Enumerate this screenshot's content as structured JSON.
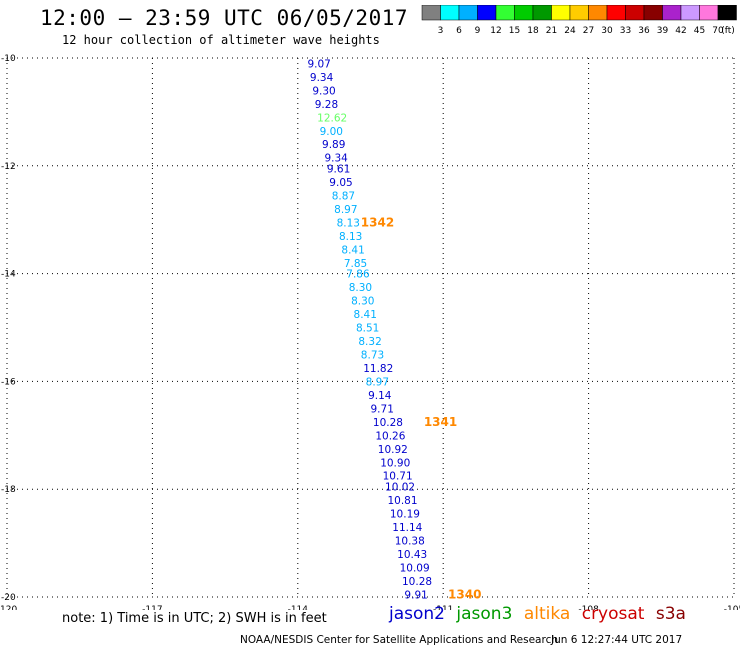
{
  "header": {
    "title": "12:00 – 23:59 UTC 06/05/2017",
    "subtitle": "12 hour collection of altimeter wave heights"
  },
  "colorbar": {
    "colors": [
      "#808080",
      "#00ffff",
      "#00b0ff",
      "#0000ff",
      "#33ff33",
      "#00cc00",
      "#009900",
      "#ffff00",
      "#ffcc00",
      "#ff8800",
      "#ff0000",
      "#cc0000",
      "#880000",
      "#aa22cc",
      "#cc99ff",
      "#ff77dd",
      "#000000"
    ],
    "labels": [
      "3",
      "6",
      "9",
      "12",
      "15",
      "18",
      "21",
      "24",
      "27",
      "30",
      "33",
      "36",
      "39",
      "42",
      "45",
      "70"
    ],
    "unit": "(ft)"
  },
  "chart_data": {
    "type": "scatter",
    "x_ticks": [
      "-120",
      "-117",
      "-114",
      "-111",
      "-108",
      "-105"
    ],
    "y_ticks": [
      "-10",
      "-12",
      "-14",
      "-16",
      "-18",
      "-20"
    ],
    "xlim": [
      -120,
      -105
    ],
    "ylim": [
      -20,
      -10
    ],
    "grid": true,
    "points": [
      {
        "lon": -113.8,
        "lat": -10.1,
        "label": "9.07",
        "color": "#0000cc"
      },
      {
        "lon": -113.75,
        "lat": -10.35,
        "label": "9.34",
        "color": "#0000cc"
      },
      {
        "lon": -113.7,
        "lat": -10.6,
        "label": "9.30",
        "color": "#0000cc"
      },
      {
        "lon": -113.65,
        "lat": -10.85,
        "label": "9.28",
        "color": "#0000cc"
      },
      {
        "lon": -113.6,
        "lat": -11.1,
        "label": "12.62",
        "color": "#66ff66"
      },
      {
        "lon": -113.55,
        "lat": -11.35,
        "label": "9.00",
        "color": "#00b0ff"
      },
      {
        "lon": -113.5,
        "lat": -11.6,
        "label": "9.89",
        "color": "#0000cc"
      },
      {
        "lon": -113.45,
        "lat": -11.85,
        "label": "9.34",
        "color": "#0000cc"
      },
      {
        "lon": -113.4,
        "lat": -12.05,
        "label": "9.61",
        "color": "#0000cc"
      },
      {
        "lon": -113.35,
        "lat": -12.3,
        "label": "9.05",
        "color": "#0000cc"
      },
      {
        "lon": -113.3,
        "lat": -12.55,
        "label": "8.87",
        "color": "#00b0ff"
      },
      {
        "lon": -113.25,
        "lat": -12.8,
        "label": "8.97",
        "color": "#00b0ff"
      },
      {
        "lon": -113.2,
        "lat": -13.05,
        "label": "8.13",
        "color": "#00b0ff"
      },
      {
        "lon": -113.15,
        "lat": -13.3,
        "label": "8.13",
        "color": "#00b0ff"
      },
      {
        "lon": -113.1,
        "lat": -13.55,
        "label": "8.41",
        "color": "#00b0ff"
      },
      {
        "lon": -113.05,
        "lat": -13.8,
        "label": "7.85",
        "color": "#00b0ff"
      },
      {
        "lon": -113.0,
        "lat": -14.0,
        "label": "7.86",
        "color": "#00b0ff"
      },
      {
        "lon": -112.95,
        "lat": -14.25,
        "label": "8.30",
        "color": "#00b0ff"
      },
      {
        "lon": -112.9,
        "lat": -14.5,
        "label": "8.30",
        "color": "#00b0ff"
      },
      {
        "lon": -112.85,
        "lat": -14.75,
        "label": "8.41",
        "color": "#00b0ff"
      },
      {
        "lon": -112.8,
        "lat": -15.0,
        "label": "8.51",
        "color": "#00b0ff"
      },
      {
        "lon": -112.75,
        "lat": -15.25,
        "label": "8.32",
        "color": "#00b0ff"
      },
      {
        "lon": -112.7,
        "lat": -15.5,
        "label": "8.73",
        "color": "#00b0ff"
      },
      {
        "lon": -112.65,
        "lat": -15.75,
        "label": "11.82",
        "color": "#0000cc"
      },
      {
        "lon": -112.6,
        "lat": -16.0,
        "label": "8.97",
        "color": "#00b0ff"
      },
      {
        "lon": -112.55,
        "lat": -16.25,
        "label": "9.14",
        "color": "#0000cc"
      },
      {
        "lon": -112.5,
        "lat": -16.5,
        "label": "9.71",
        "color": "#0000cc"
      },
      {
        "lon": -112.45,
        "lat": -16.75,
        "label": "10.28",
        "color": "#0000cc"
      },
      {
        "lon": -112.4,
        "lat": -17.0,
        "label": "10.26",
        "color": "#0000cc"
      },
      {
        "lon": -112.35,
        "lat": -17.25,
        "label": "10.92",
        "color": "#0000cc"
      },
      {
        "lon": -112.3,
        "lat": -17.5,
        "label": "10.90",
        "color": "#0000cc"
      },
      {
        "lon": -112.25,
        "lat": -17.75,
        "label": "10.71",
        "color": "#0000cc"
      },
      {
        "lon": -112.2,
        "lat": -17.95,
        "label": "10.02",
        "color": "#0000cc"
      },
      {
        "lon": -112.15,
        "lat": -18.2,
        "label": "10.81",
        "color": "#0000cc"
      },
      {
        "lon": -112.1,
        "lat": -18.45,
        "label": "10.19",
        "color": "#0000cc"
      },
      {
        "lon": -112.05,
        "lat": -18.7,
        "label": "11.14",
        "color": "#0000cc"
      },
      {
        "lon": -112.0,
        "lat": -18.95,
        "label": "10.38",
        "color": "#0000cc"
      },
      {
        "lon": -111.95,
        "lat": -19.2,
        "label": "10.43",
        "color": "#0000cc"
      },
      {
        "lon": -111.9,
        "lat": -19.45,
        "label": "10.09",
        "color": "#0000cc"
      },
      {
        "lon": -111.85,
        "lat": -19.7,
        "label": "10.28",
        "color": "#0000cc"
      },
      {
        "lon": -111.8,
        "lat": -19.95,
        "label": "9.91",
        "color": "#0000cc"
      }
    ],
    "annotations": [
      {
        "lon": -112.7,
        "lat": -13.05,
        "label": "1342",
        "color": "#ff8800"
      },
      {
        "lon": -111.4,
        "lat": -16.75,
        "label": "1341",
        "color": "#ff8800"
      },
      {
        "lon": -110.9,
        "lat": -19.95,
        "label": "1340",
        "color": "#ff8800"
      }
    ]
  },
  "note": "note: 1) Time is in UTC; 2) SWH is in feet",
  "legend": [
    {
      "name": "jason2",
      "color": "#0000cc"
    },
    {
      "name": "jason3",
      "color": "#009900"
    },
    {
      "name": "altika",
      "color": "#ff8800"
    },
    {
      "name": "cryosat",
      "color": "#cc0000"
    },
    {
      "name": "s3a",
      "color": "#880000"
    }
  ],
  "footer": {
    "credit": "NOAA/NESDIS Center for Satellite Applications and Research",
    "timestamp": "Jun  6 12:27:44 UTC 2017"
  }
}
